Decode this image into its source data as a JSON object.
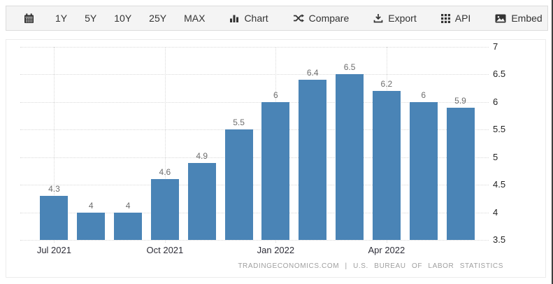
{
  "toolbar": {
    "calendar_icon": "calendar-icon",
    "ranges": [
      "1Y",
      "5Y",
      "10Y",
      "25Y",
      "MAX"
    ],
    "actions": [
      {
        "label": "Chart",
        "icon": "bar-chart-icon"
      },
      {
        "label": "Compare",
        "icon": "shuffle-icon"
      },
      {
        "label": "Export",
        "icon": "download-icon"
      },
      {
        "label": "API",
        "icon": "grid-icon"
      },
      {
        "label": "Embed",
        "icon": "image-icon"
      }
    ]
  },
  "chart_data": {
    "type": "bar",
    "title": "",
    "xlabel": "",
    "ylabel": "",
    "values": [
      4.3,
      4,
      4,
      4.6,
      4.9,
      5.5,
      6,
      6.4,
      6.5,
      6.2,
      6,
      5.9
    ],
    "bar_labels": [
      "4.3",
      "4",
      "4",
      "4.6",
      "4.9",
      "5.5",
      "6",
      "6.4",
      "6.5",
      "6.2",
      "6",
      "5.9"
    ],
    "x_ticks": [
      {
        "index": 0,
        "label": "Jul 2021"
      },
      {
        "index": 3,
        "label": "Oct 2021"
      },
      {
        "index": 6,
        "label": "Jan 2022"
      },
      {
        "index": 9,
        "label": "Apr 2022"
      }
    ],
    "y_ticks": [
      7,
      6.5,
      6,
      5.5,
      5,
      4.5,
      4,
      3.5
    ],
    "ylim": [
      3.5,
      7
    ],
    "grid": "dotted",
    "legend": "none",
    "bar_color": "#4a84b6"
  },
  "footer": {
    "attribution": "TRADINGECONOMICS.COM | U.S. BUREAU OF LABOR STATISTICS"
  },
  "colors": {
    "bar": "#4a84b6",
    "toolbar_background": "#f4f4f4",
    "grid_line": "#d9d9d9",
    "value_label": "#6e6e6e",
    "axis_label": "#222222",
    "footer_text": "#9f9f9f"
  }
}
